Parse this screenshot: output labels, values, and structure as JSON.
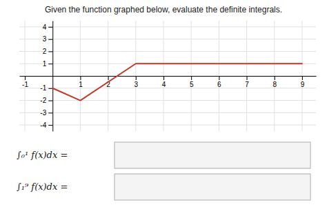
{
  "chart_data": {
    "type": "line",
    "title": "Given the function graphed below, evaluate the definite integrals.",
    "x": [
      0,
      1,
      3,
      9
    ],
    "values": [
      -1,
      -2,
      1,
      1
    ],
    "color": "#c0392b",
    "xlim": [
      -1.2,
      9.5
    ],
    "ylim": [
      -4.5,
      4.5
    ],
    "xticks": [
      -1,
      1,
      2,
      3,
      4,
      5,
      6,
      7,
      8,
      9
    ],
    "yticks": [
      -4,
      -3,
      -2,
      -1,
      1,
      2,
      3,
      4
    ],
    "grid": true,
    "annotations": [
      "∫₀¹ f(x)dx =",
      "∫₁⁹ f(x)dx ="
    ]
  }
}
